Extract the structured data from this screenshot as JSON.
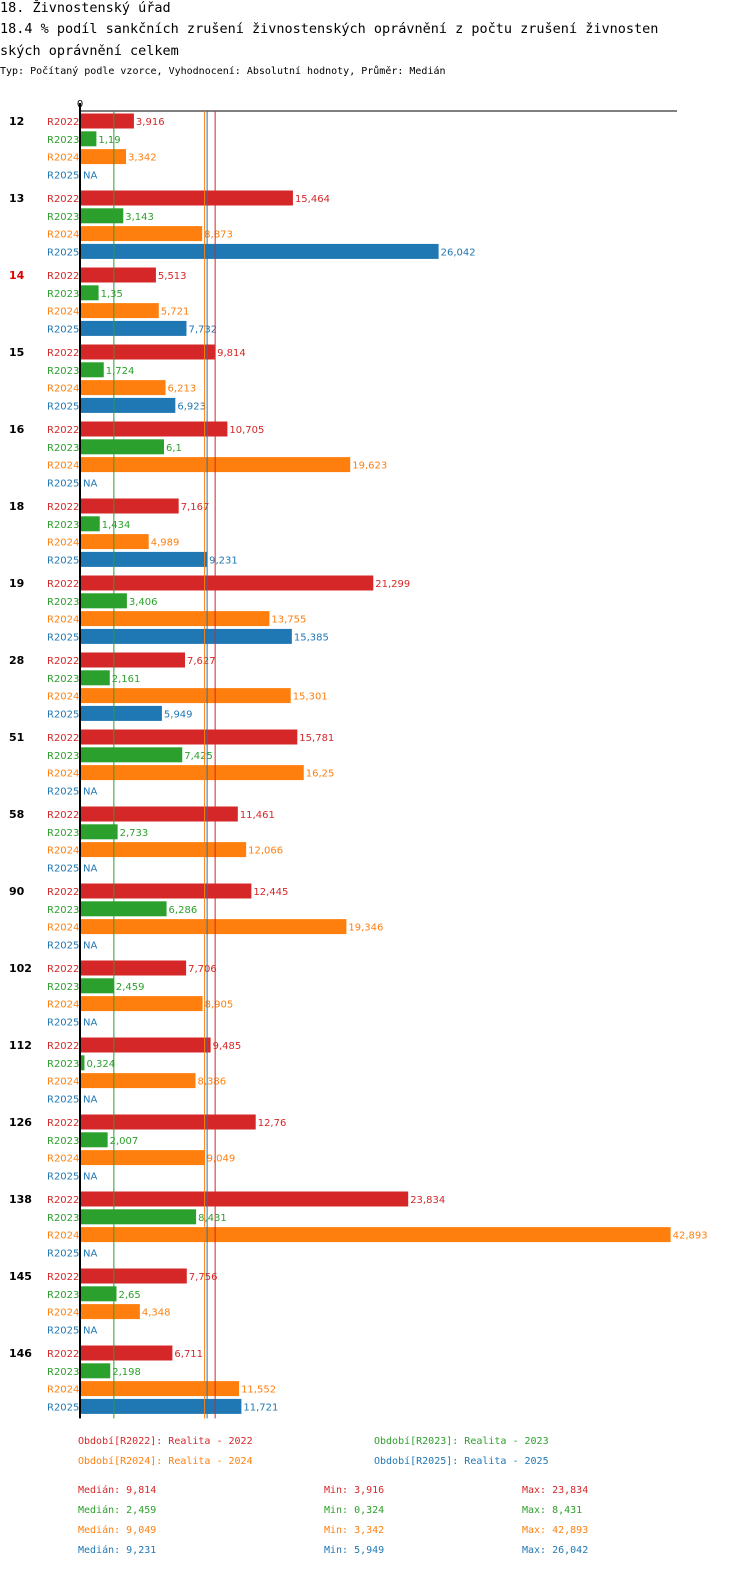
{
  "header": {
    "line1": "18. Živnostenský úřad",
    "line2": "18.4 % podíl sankčních zrušení živnostenských oprávnění z počtu zrušení živnosten",
    "line3": "ských oprávnění  celkem",
    "subtitle": "Typ: Počítaný podle vzorce, Vyhodnocení: Absolutní hodnoty, Průměr: Medián"
  },
  "chart_data": {
    "type": "bar",
    "orientation": "horizontal",
    "x_tick_label": "0",
    "highlight_group": "14",
    "groups": [
      "12",
      "13",
      "14",
      "15",
      "16",
      "18",
      "19",
      "28",
      "51",
      "58",
      "90",
      "102",
      "112",
      "126",
      "138",
      "145",
      "146"
    ],
    "series": [
      {
        "name": "R2022",
        "color": "#d62728",
        "values": [
          3.916,
          15.464,
          5.513,
          9.814,
          10.705,
          7.167,
          21.299,
          7.627,
          15.781,
          11.461,
          12.445,
          7.706,
          9.485,
          12.76,
          23.834,
          7.756,
          6.711
        ],
        "labels": [
          "3,916",
          "15,464",
          "5,513",
          "9,814",
          "10,705",
          "7,167",
          "21,299",
          "7,627",
          "15,781",
          "11,461",
          "12,445",
          "7,706",
          "9,485",
          "12,76",
          "23,834",
          "7,756",
          "6,711"
        ]
      },
      {
        "name": "R2023",
        "color": "#2ca02c",
        "values": [
          1.19,
          3.143,
          1.35,
          1.724,
          6.1,
          1.434,
          3.406,
          2.161,
          7.425,
          2.733,
          6.286,
          2.459,
          0.324,
          2.007,
          8.431,
          2.65,
          2.198
        ],
        "labels": [
          "1,19",
          "3,143",
          "1,35",
          "1,724",
          "6,1",
          "1,434",
          "3,406",
          "2,161",
          "7,425",
          "2,733",
          "6,286",
          "2,459",
          "0,324",
          "2,007",
          "8,431",
          "2,65",
          "2,198"
        ]
      },
      {
        "name": "R2024",
        "color": "#ff7f0e",
        "values": [
          3.342,
          8.873,
          5.721,
          6.213,
          19.623,
          4.989,
          13.755,
          15.301,
          16.25,
          12.066,
          19.346,
          8.905,
          8.386,
          9.049,
          42.893,
          4.348,
          11.552
        ],
        "labels": [
          "3,342",
          "8,873",
          "5,721",
          "6,213",
          "19,623",
          "4,989",
          "13,755",
          "15,301",
          "16,25",
          "12,066",
          "19,346",
          "8,905",
          "8,386",
          "9,049",
          "42,893",
          "4,348",
          "11,552"
        ]
      },
      {
        "name": "R2025",
        "color": "#1f77b4",
        "values": [
          null,
          26.042,
          7.732,
          6.923,
          null,
          9.231,
          15.385,
          5.949,
          null,
          null,
          null,
          null,
          null,
          null,
          null,
          null,
          11.721
        ],
        "labels": [
          "NA",
          "26,042",
          "7,732",
          "6,923",
          "NA",
          "9,231",
          "15,385",
          "5,949",
          "NA",
          "NA",
          "NA",
          "NA",
          "NA",
          "NA",
          "NA",
          "NA",
          "11,721"
        ]
      }
    ],
    "median_lines": [
      {
        "series": "R2022",
        "value": 9.814,
        "color": "#d62728"
      },
      {
        "series": "R2023",
        "value": 2.459,
        "color": "#2ca02c"
      },
      {
        "series": "R2024",
        "value": 9.049,
        "color": "#ff7f0e"
      },
      {
        "series": "R2025",
        "value": 9.231,
        "color": "#1f77b4"
      }
    ],
    "legend": [
      {
        "text": "Období[R2022]: Realita - 2022",
        "color": "#d62728"
      },
      {
        "text": "Období[R2023]: Realita - 2023",
        "color": "#2ca02c"
      },
      {
        "text": "Období[R2024]: Realita - 2024",
        "color": "#ff7f0e"
      },
      {
        "text": "Období[R2025]: Realita - 2025",
        "color": "#1f77b4"
      }
    ],
    "stats": [
      {
        "median": "Medián: 9,814",
        "min": "Min: 3,916",
        "max": "Max: 23,834",
        "color": "#d62728"
      },
      {
        "median": "Medián: 2,459",
        "min": "Min: 0,324",
        "max": "Max: 8,431",
        "color": "#2ca02c"
      },
      {
        "median": "Medián: 9,049",
        "min": "Min: 3,342",
        "max": "Max: 42,893",
        "color": "#ff7f0e"
      },
      {
        "median": "Medián: 9,231",
        "min": "Min: 5,949",
        "max": "Max: 26,042",
        "color": "#1f77b4"
      }
    ]
  }
}
